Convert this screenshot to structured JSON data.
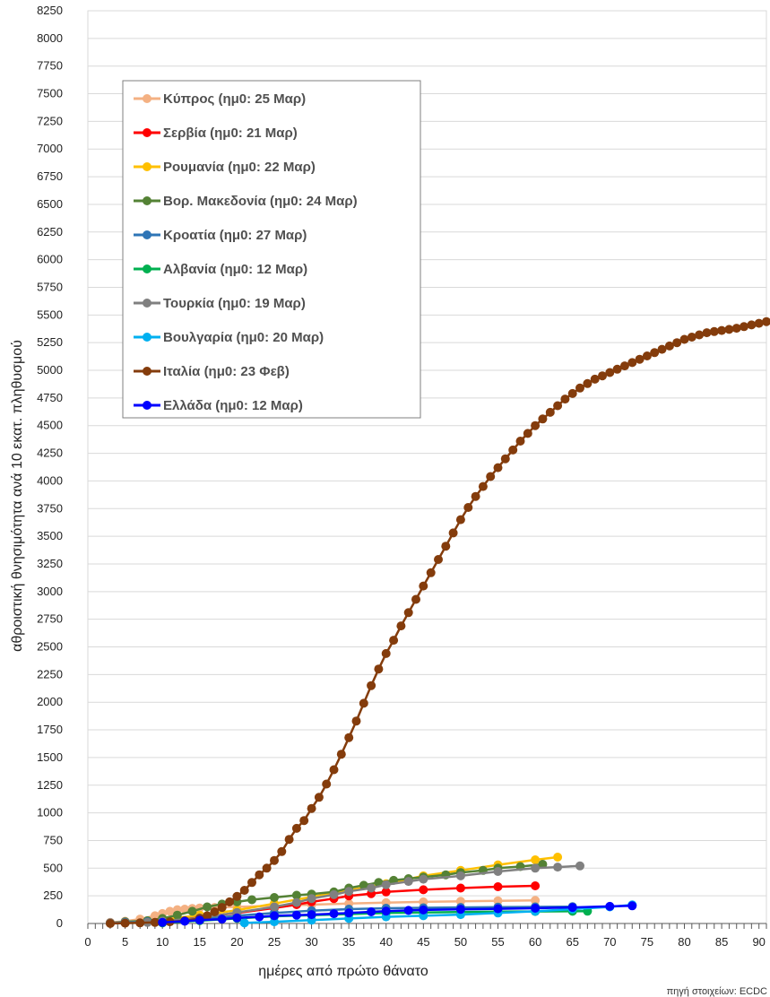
{
  "chart_data": {
    "type": "line",
    "title": "",
    "xlabel": "ημέρες από πρώτο θάνατο",
    "ylabel": "αθροιστική θνησιμότητα ανά 10 εκατ. πληθυσμού",
    "source": "πηγή στοιχείων: ECDC",
    "xlim": [
      0,
      91
    ],
    "ylim": [
      0,
      8250
    ],
    "x_ticks": [
      0,
      5,
      10,
      15,
      20,
      25,
      30,
      35,
      40,
      45,
      50,
      55,
      60,
      65,
      70,
      75,
      80,
      85,
      90
    ],
    "y_ticks": [
      0,
      250,
      500,
      750,
      1000,
      1250,
      1500,
      1750,
      2000,
      2250,
      2500,
      2750,
      3000,
      3250,
      3500,
      3750,
      4000,
      4250,
      4500,
      4750,
      5000,
      5250,
      5500,
      5750,
      6000,
      6250,
      6500,
      6750,
      7000,
      7250,
      7500,
      7750,
      8000,
      8250
    ],
    "grid": true,
    "legend_position": "top-left",
    "series": [
      {
        "name": "Κύπρος (ημ0: 25 Μαρ)",
        "color": "#f4b183",
        "points": [
          [
            3,
            10
          ],
          [
            5,
            20
          ],
          [
            7,
            40
          ],
          [
            9,
            70
          ],
          [
            10,
            90
          ],
          [
            11,
            110
          ],
          [
            12,
            125
          ],
          [
            13,
            130
          ],
          [
            14,
            135
          ],
          [
            15,
            140
          ],
          [
            17,
            145
          ],
          [
            20,
            150
          ],
          [
            25,
            160
          ],
          [
            30,
            170
          ],
          [
            35,
            180
          ],
          [
            40,
            188
          ],
          [
            45,
            195
          ],
          [
            50,
            200
          ],
          [
            55,
            205
          ],
          [
            60,
            208
          ]
        ]
      },
      {
        "name": "Σερβία (ημ0: 21 Μαρ)",
        "color": "#ff0000",
        "points": [
          [
            3,
            5
          ],
          [
            5,
            10
          ],
          [
            8,
            15
          ],
          [
            10,
            25
          ],
          [
            15,
            55
          ],
          [
            20,
            95
          ],
          [
            25,
            140
          ],
          [
            28,
            170
          ],
          [
            30,
            195
          ],
          [
            33,
            225
          ],
          [
            35,
            250
          ],
          [
            38,
            270
          ],
          [
            40,
            285
          ],
          [
            45,
            305
          ],
          [
            50,
            320
          ],
          [
            55,
            332
          ],
          [
            60,
            340
          ]
        ]
      },
      {
        "name": "Ρουμανία (ημ0: 22 Μαρ)",
        "color": "#ffc000",
        "points": [
          [
            3,
            5
          ],
          [
            5,
            10
          ],
          [
            8,
            20
          ],
          [
            10,
            35
          ],
          [
            15,
            75
          ],
          [
            20,
            120
          ],
          [
            25,
            180
          ],
          [
            30,
            240
          ],
          [
            35,
            300
          ],
          [
            40,
            360
          ],
          [
            45,
            430
          ],
          [
            50,
            480
          ],
          [
            55,
            530
          ],
          [
            60,
            575
          ],
          [
            63,
            600
          ]
        ]
      },
      {
        "name": "Βορ. Μακεδονία (ημ0: 24 Μαρ)",
        "color": "#548235",
        "points": [
          [
            3,
            5
          ],
          [
            5,
            15
          ],
          [
            8,
            25
          ],
          [
            10,
            45
          ],
          [
            12,
            75
          ],
          [
            14,
            110
          ],
          [
            16,
            150
          ],
          [
            18,
            175
          ],
          [
            20,
            195
          ],
          [
            22,
            215
          ],
          [
            25,
            235
          ],
          [
            28,
            255
          ],
          [
            30,
            265
          ],
          [
            33,
            285
          ],
          [
            35,
            320
          ],
          [
            37,
            345
          ],
          [
            39,
            370
          ],
          [
            41,
            390
          ],
          [
            43,
            405
          ],
          [
            45,
            420
          ],
          [
            48,
            440
          ],
          [
            50,
            460
          ],
          [
            53,
            480
          ],
          [
            55,
            500
          ],
          [
            58,
            515
          ],
          [
            61,
            535
          ]
        ]
      },
      {
        "name": "Κροατία (ημ0: 27 Μαρ)",
        "color": "#2e75b6",
        "points": [
          [
            3,
            5
          ],
          [
            5,
            10
          ],
          [
            8,
            15
          ],
          [
            10,
            20
          ],
          [
            15,
            40
          ],
          [
            20,
            70
          ],
          [
            25,
            95
          ],
          [
            30,
            115
          ],
          [
            35,
            130
          ],
          [
            40,
            138
          ],
          [
            45,
            142
          ],
          [
            50,
            145
          ],
          [
            55,
            148
          ],
          [
            60,
            150
          ],
          [
            65,
            152
          ]
        ]
      },
      {
        "name": "Αλβανία (ημ0: 12 Μαρ)",
        "color": "#00b050",
        "points": [
          [
            10,
            5
          ],
          [
            15,
            25
          ],
          [
            20,
            45
          ],
          [
            25,
            65
          ],
          [
            30,
            75
          ],
          [
            35,
            85
          ],
          [
            40,
            95
          ],
          [
            45,
            100
          ],
          [
            50,
            104
          ],
          [
            55,
            107
          ],
          [
            60,
            109
          ],
          [
            65,
            110
          ],
          [
            67,
            111
          ]
        ]
      },
      {
        "name": "Τουρκία (ημ0: 19 Μαρ)",
        "color": "#808080",
        "points": [
          [
            3,
            3
          ],
          [
            5,
            5
          ],
          [
            8,
            10
          ],
          [
            10,
            20
          ],
          [
            15,
            50
          ],
          [
            20,
            100
          ],
          [
            25,
            150
          ],
          [
            28,
            190
          ],
          [
            30,
            225
          ],
          [
            33,
            260
          ],
          [
            35,
            290
          ],
          [
            38,
            320
          ],
          [
            40,
            350
          ],
          [
            43,
            380
          ],
          [
            45,
            400
          ],
          [
            50,
            430
          ],
          [
            55,
            470
          ],
          [
            60,
            500
          ],
          [
            63,
            510
          ],
          [
            66,
            520
          ]
        ]
      },
      {
        "name": "Βουλγαρία (ημ0: 20 Μαρ)",
        "color": "#00b0f0",
        "points": [
          [
            21,
            5
          ],
          [
            25,
            15
          ],
          [
            30,
            30
          ],
          [
            35,
            45
          ],
          [
            40,
            60
          ],
          [
            45,
            70
          ],
          [
            50,
            80
          ],
          [
            55,
            95
          ],
          [
            60,
            110
          ],
          [
            65,
            130
          ],
          [
            70,
            150
          ],
          [
            73,
            168
          ]
        ]
      },
      {
        "name": "Ιταλία (ημ0: 23 Φεβ)",
        "color": "#843c0c",
        "points": [
          [
            3,
            0
          ],
          [
            5,
            3
          ],
          [
            7,
            6
          ],
          [
            9,
            10
          ],
          [
            11,
            15
          ],
          [
            13,
            25
          ],
          [
            15,
            45
          ],
          [
            16,
            70
          ],
          [
            17,
            105
          ],
          [
            18,
            145
          ],
          [
            19,
            195
          ],
          [
            20,
            245
          ],
          [
            21,
            300
          ],
          [
            22,
            370
          ],
          [
            23,
            440
          ],
          [
            24,
            500
          ],
          [
            25,
            570
          ],
          [
            26,
            650
          ],
          [
            27,
            760
          ],
          [
            28,
            860
          ],
          [
            29,
            930
          ],
          [
            30,
            1040
          ],
          [
            31,
            1140
          ],
          [
            32,
            1260
          ],
          [
            33,
            1390
          ],
          [
            34,
            1530
          ],
          [
            35,
            1680
          ],
          [
            36,
            1830
          ],
          [
            37,
            1990
          ],
          [
            38,
            2150
          ],
          [
            39,
            2300
          ],
          [
            40,
            2440
          ],
          [
            41,
            2560
          ],
          [
            42,
            2690
          ],
          [
            43,
            2810
          ],
          [
            44,
            2930
          ],
          [
            45,
            3050
          ],
          [
            46,
            3170
          ],
          [
            47,
            3290
          ],
          [
            48,
            3410
          ],
          [
            49,
            3530
          ],
          [
            50,
            3650
          ],
          [
            51,
            3760
          ],
          [
            52,
            3860
          ],
          [
            53,
            3950
          ],
          [
            54,
            4040
          ],
          [
            55,
            4120
          ],
          [
            56,
            4200
          ],
          [
            57,
            4280
          ],
          [
            58,
            4360
          ],
          [
            59,
            4430
          ],
          [
            60,
            4500
          ],
          [
            61,
            4560
          ],
          [
            62,
            4620
          ],
          [
            63,
            4680
          ],
          [
            64,
            4740
          ],
          [
            65,
            4790
          ],
          [
            66,
            4840
          ],
          [
            67,
            4880
          ],
          [
            68,
            4920
          ],
          [
            69,
            4950
          ],
          [
            70,
            4980
          ],
          [
            71,
            5010
          ],
          [
            72,
            5040
          ],
          [
            73,
            5070
          ],
          [
            74,
            5100
          ],
          [
            75,
            5130
          ],
          [
            76,
            5160
          ],
          [
            77,
            5190
          ],
          [
            78,
            5220
          ],
          [
            79,
            5250
          ],
          [
            80,
            5280
          ],
          [
            81,
            5300
          ],
          [
            82,
            5320
          ],
          [
            83,
            5340
          ],
          [
            84,
            5350
          ],
          [
            85,
            5360
          ],
          [
            86,
            5370
          ],
          [
            87,
            5380
          ],
          [
            88,
            5395
          ],
          [
            89,
            5410
          ],
          [
            90,
            5425
          ],
          [
            91,
            5440
          ]
        ]
      },
      {
        "name": "Ελλάδα (ημ0: 12 Μαρ)",
        "color": "#0000ff",
        "points": [
          [
            10,
            10
          ],
          [
            13,
            20
          ],
          [
            15,
            30
          ],
          [
            18,
            40
          ],
          [
            20,
            50
          ],
          [
            23,
            60
          ],
          [
            25,
            70
          ],
          [
            28,
            75
          ],
          [
            30,
            80
          ],
          [
            33,
            88
          ],
          [
            35,
            95
          ],
          [
            38,
            105
          ],
          [
            40,
            112
          ],
          [
            43,
            118
          ],
          [
            45,
            122
          ],
          [
            50,
            128
          ],
          [
            55,
            133
          ],
          [
            60,
            138
          ],
          [
            65,
            145
          ],
          [
            70,
            155
          ],
          [
            73,
            160
          ]
        ]
      }
    ]
  }
}
